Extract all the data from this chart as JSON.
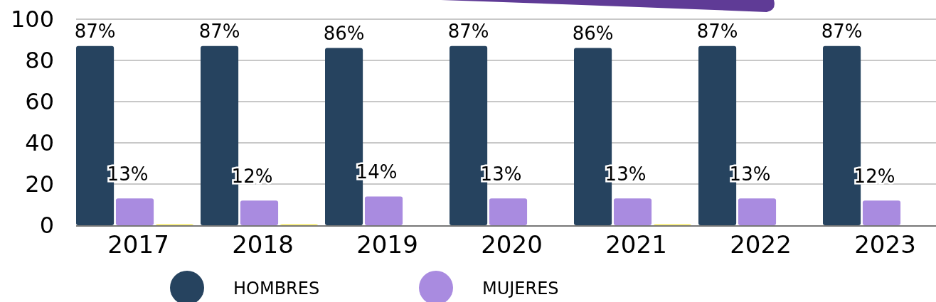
{
  "chart_data": {
    "type": "bar",
    "categories": [
      "2017",
      "2018",
      "2019",
      "2020",
      "2021",
      "2022",
      "2023"
    ],
    "series": [
      {
        "name": "HOMBRES",
        "color": "#26435f",
        "values": [
          87,
          87,
          86,
          87,
          86,
          87,
          87
        ],
        "value_labels": [
          "87%",
          "87%",
          "86%",
          "87%",
          "86%",
          "87%",
          "87%"
        ]
      },
      {
        "name": "MUJERES",
        "color": "#a98be0",
        "values": [
          13,
          12,
          14,
          13,
          13,
          13,
          12
        ],
        "value_labels": [
          "13%",
          "12%",
          "14%",
          "13%",
          "13%",
          "13%",
          "12%"
        ]
      },
      {
        "color": "#f7ea5e",
        "values": [
          0.5,
          0.5,
          null,
          null,
          0.5,
          null,
          null
        ]
      }
    ],
    "ylim": [
      0,
      100
    ],
    "yticks": [
      0,
      20,
      40,
      60,
      80,
      100
    ],
    "grid": "y",
    "legend": "bottom"
  }
}
